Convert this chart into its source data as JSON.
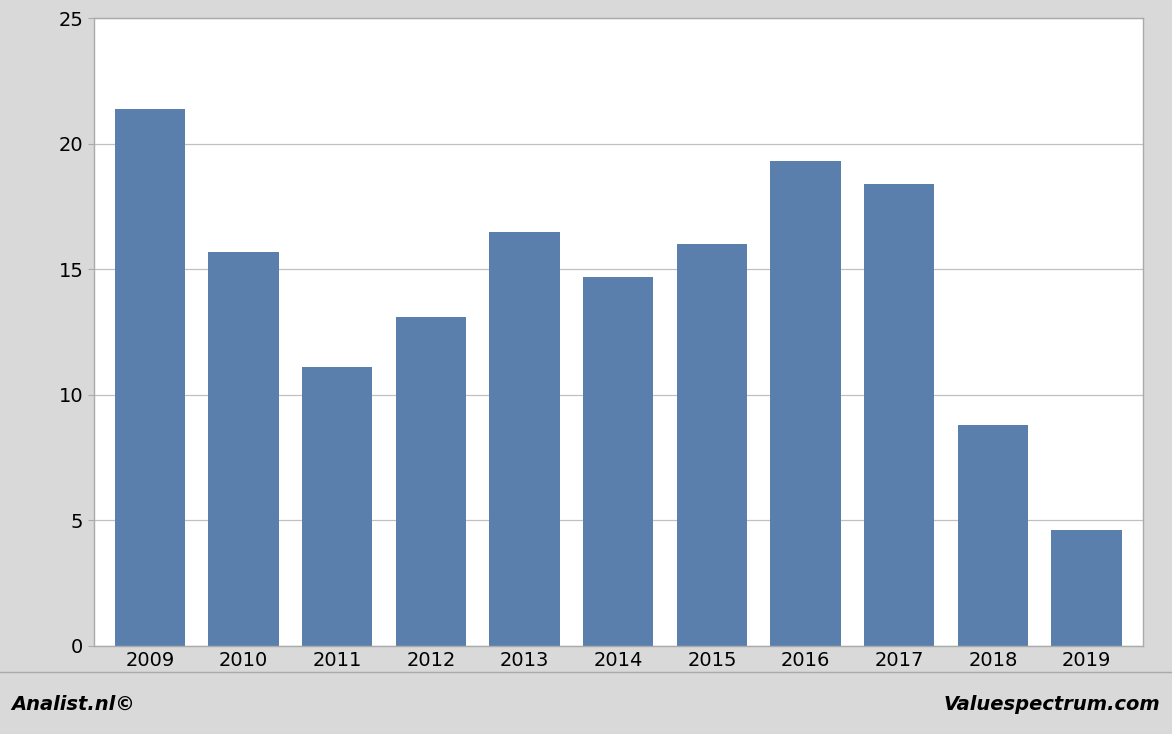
{
  "categories": [
    "2009",
    "2010",
    "2011",
    "2012",
    "2013",
    "2014",
    "2015",
    "2016",
    "2017",
    "2018",
    "2019"
  ],
  "values": [
    21.4,
    15.7,
    11.1,
    13.1,
    16.5,
    14.7,
    16.0,
    19.3,
    18.4,
    8.8,
    4.6
  ],
  "bar_color": "#5b7fad",
  "ylim": [
    0,
    25
  ],
  "yticks": [
    0,
    5,
    10,
    15,
    20,
    25
  ],
  "background_color": "#d9d9d9",
  "plot_bg_color": "#ffffff",
  "grid_color": "#c0c0c0",
  "border_color": "#aaaaaa",
  "footer_left": "Analist.nl©",
  "footer_right": "Valuespectrum.com",
  "footer_fontsize": 14,
  "footer_bg_color": "#d9d9d9",
  "footer_text_color": "#000000"
}
